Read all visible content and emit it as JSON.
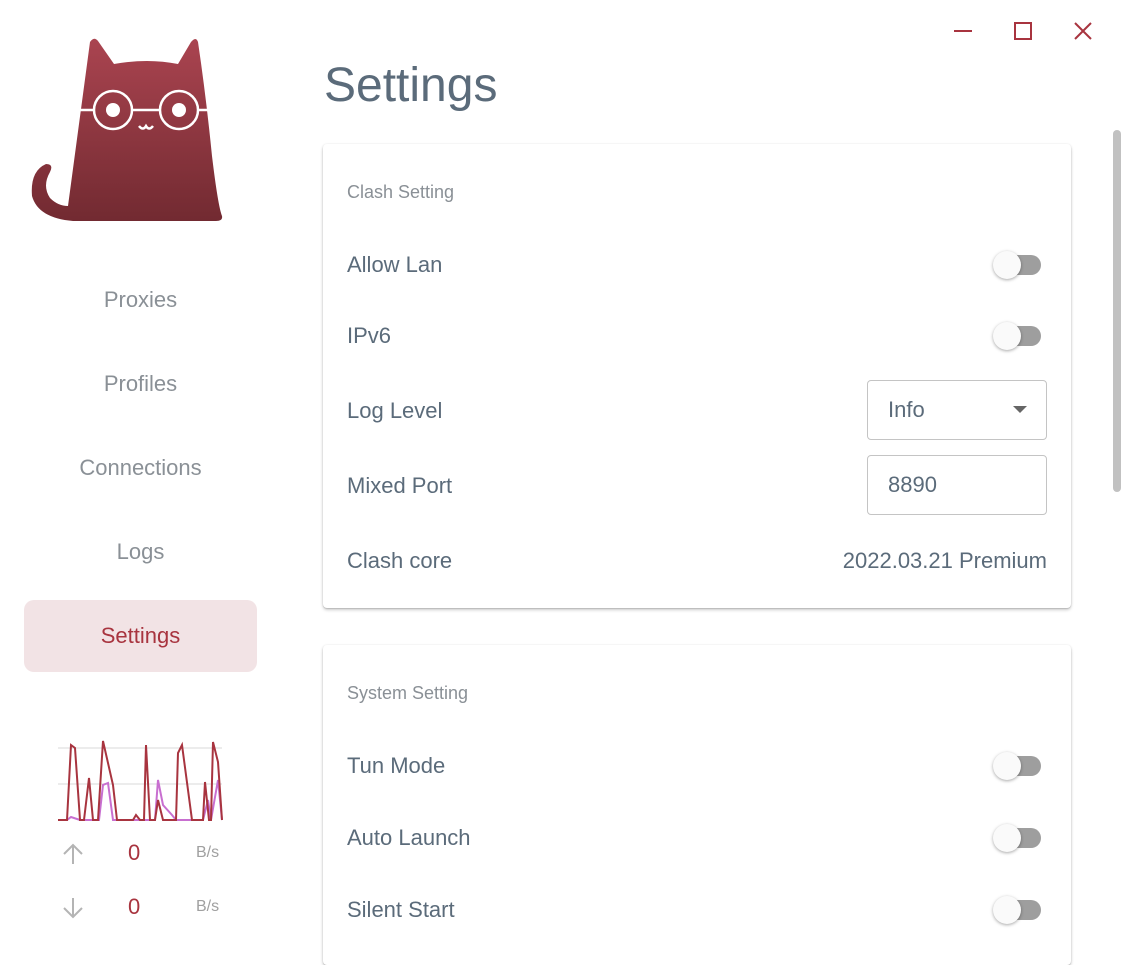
{
  "sidebar": {
    "nav": [
      {
        "label": "Proxies",
        "active": false
      },
      {
        "label": "Profiles",
        "active": false
      },
      {
        "label": "Connections",
        "active": false
      },
      {
        "label": "Logs",
        "active": false
      },
      {
        "label": "Settings",
        "active": true
      }
    ],
    "traffic": {
      "upload": {
        "value": "0",
        "unit": "B/s",
        "icon": "arrow-up-icon"
      },
      "download": {
        "value": "0",
        "unit": "B/s",
        "icon": "arrow-down-icon"
      },
      "colors": {
        "upload": "#c86fd0",
        "download": "#a8343f"
      }
    }
  },
  "window_controls": {
    "minimize": "minimize-icon",
    "maximize": "maximize-icon",
    "close": "close-icon",
    "color": "#a8343f"
  },
  "page": {
    "title": "Settings"
  },
  "clash_setting": {
    "title": "Clash Setting",
    "allow_lan": {
      "label": "Allow Lan",
      "on": false
    },
    "ipv6": {
      "label": "IPv6",
      "on": false
    },
    "log_level": {
      "label": "Log Level",
      "value": "Info"
    },
    "mixed_port": {
      "label": "Mixed Port",
      "value": "8890"
    },
    "clash_core": {
      "label": "Clash core",
      "value": "2022.03.21 Premium"
    }
  },
  "system_setting": {
    "title": "System Setting",
    "tun_mode": {
      "label": "Tun Mode",
      "on": false
    },
    "auto_launch": {
      "label": "Auto Launch",
      "on": false
    },
    "silent_start": {
      "label": "Silent Start",
      "on": false
    }
  },
  "theme": {
    "accent": "#a8343f",
    "accent_bg": "#f2e3e5"
  }
}
